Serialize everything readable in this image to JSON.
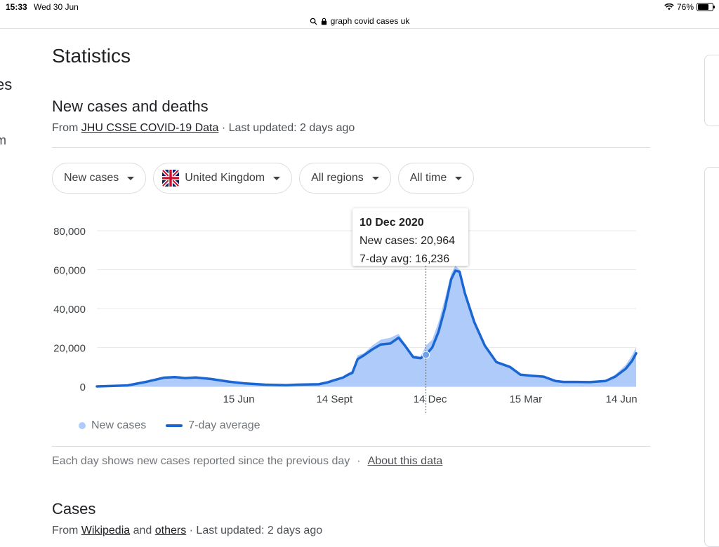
{
  "status": {
    "time": "15:33",
    "date": "Wed 30 Jun",
    "battery": "76%",
    "battery_level": 0.76
  },
  "url": {
    "text": "graph covid cases uk"
  },
  "left_edge": {
    "fragment1": "es",
    "fragment2": "m"
  },
  "page": {
    "title": "Statistics",
    "section_title": "New cases and deaths",
    "source_prefix": "From ",
    "source_link": "JHU CSSE COVID-19 Data",
    "source_suffix": " · Last updated: 2 days ago"
  },
  "filters": [
    {
      "label": "New cases"
    },
    {
      "label": "United Kingdom"
    },
    {
      "label": "All regions"
    },
    {
      "label": "All time"
    }
  ],
  "tooltip": {
    "date": "10 Dec 2020",
    "cases": "New cases: 20,964",
    "avg": "7-day avg: 16,236"
  },
  "legend": {
    "new_cases": "New cases",
    "avg": "7-day average"
  },
  "footnote": {
    "text": "Each day shows new cases reported since the previous day",
    "sep": "·",
    "link": "About this data"
  },
  "cases_section": {
    "title": "Cases",
    "prefix": "From ",
    "link1": "Wikipedia",
    "middle": " and ",
    "link2": "others",
    "suffix": " · Last updated: 2 days ago"
  },
  "colors": {
    "bar": "#aecbfa",
    "line": "#1a66d2",
    "grid": "#e8eaed"
  },
  "chart_data": {
    "type": "area",
    "x_range": [
      "2020-02-01",
      "2021-06-28"
    ],
    "ylim": [
      0,
      80000
    ],
    "y_ticks": [
      "0",
      "20,000",
      "40,000",
      "60,000",
      "80,000"
    ],
    "y_tick_values": [
      0,
      20000,
      40000,
      60000,
      80000
    ],
    "x_ticks": [
      {
        "label": "15 Jun",
        "date": "2020-06-15"
      },
      {
        "label": "14 Sept",
        "date": "2020-09-14"
      },
      {
        "label": "14 Dec",
        "date": "2020-12-14"
      },
      {
        "label": "15 Mar",
        "date": "2021-03-15"
      },
      {
        "label": "14 Jun",
        "date": "2021-06-14"
      }
    ],
    "highlight": {
      "date": "2020-12-10",
      "new_cases": 20964,
      "avg": 16236
    },
    "series": [
      {
        "name": "7-day average",
        "points": [
          [
            "2020-02-01",
            0
          ],
          [
            "2020-03-01",
            500
          ],
          [
            "2020-03-20",
            2500
          ],
          [
            "2020-04-05",
            4500
          ],
          [
            "2020-04-15",
            4800
          ],
          [
            "2020-04-25",
            4300
          ],
          [
            "2020-05-05",
            4600
          ],
          [
            "2020-05-20",
            3800
          ],
          [
            "2020-06-05",
            2500
          ],
          [
            "2020-06-20",
            1600
          ],
          [
            "2020-07-10",
            900
          ],
          [
            "2020-07-30",
            600
          ],
          [
            "2020-08-10",
            900
          ],
          [
            "2020-08-30",
            1100
          ],
          [
            "2020-09-07",
            2000
          ],
          [
            "2020-09-14",
            3200
          ],
          [
            "2020-09-22",
            4500
          ],
          [
            "2020-09-27",
            6000
          ],
          [
            "2020-10-01",
            7000
          ],
          [
            "2020-10-06",
            14000
          ],
          [
            "2020-10-12",
            16000
          ],
          [
            "2020-10-20",
            19000
          ],
          [
            "2020-10-28",
            21500
          ],
          [
            "2020-11-06",
            22000
          ],
          [
            "2020-11-14",
            25000
          ],
          [
            "2020-11-20",
            21000
          ],
          [
            "2020-11-28",
            15000
          ],
          [
            "2020-12-05",
            14500
          ],
          [
            "2020-12-10",
            16236
          ],
          [
            "2020-12-16",
            20000
          ],
          [
            "2020-12-22",
            28000
          ],
          [
            "2020-12-28",
            40000
          ],
          [
            "2021-01-03",
            55000
          ],
          [
            "2021-01-07",
            59500
          ],
          [
            "2021-01-11",
            59000
          ],
          [
            "2021-01-16",
            48000
          ],
          [
            "2021-01-25",
            33000
          ],
          [
            "2021-02-04",
            21000
          ],
          [
            "2021-02-15",
            12500
          ],
          [
            "2021-02-28",
            10000
          ],
          [
            "2021-03-10",
            6000
          ],
          [
            "2021-03-20",
            5500
          ],
          [
            "2021-04-01",
            5000
          ],
          [
            "2021-04-12",
            2800
          ],
          [
            "2021-04-20",
            2300
          ],
          [
            "2021-05-01",
            2300
          ],
          [
            "2021-05-15",
            2200
          ],
          [
            "2021-05-30",
            2800
          ],
          [
            "2021-06-08",
            5000
          ],
          [
            "2021-06-18",
            9000
          ],
          [
            "2021-06-24",
            13000
          ],
          [
            "2021-06-28",
            17000
          ]
        ]
      },
      {
        "name": "New cases",
        "points": [
          [
            "2020-02-01",
            0
          ],
          [
            "2020-03-01",
            600
          ],
          [
            "2020-03-20",
            3000
          ],
          [
            "2020-04-05",
            5000
          ],
          [
            "2020-04-15",
            5300
          ],
          [
            "2020-04-25",
            4500
          ],
          [
            "2020-05-05",
            5000
          ],
          [
            "2020-05-20",
            4000
          ],
          [
            "2020-06-05",
            2700
          ],
          [
            "2020-06-20",
            1700
          ],
          [
            "2020-07-10",
            1000
          ],
          [
            "2020-07-30",
            700
          ],
          [
            "2020-08-10",
            1000
          ],
          [
            "2020-08-30",
            1300
          ],
          [
            "2020-09-07",
            2500
          ],
          [
            "2020-09-14",
            3600
          ],
          [
            "2020-09-22",
            5000
          ],
          [
            "2020-09-27",
            7000
          ],
          [
            "2020-10-01",
            8000
          ],
          [
            "2020-10-06",
            16000
          ],
          [
            "2020-10-12",
            17000
          ],
          [
            "2020-10-20",
            21000
          ],
          [
            "2020-10-28",
            24000
          ],
          [
            "2020-11-06",
            25000
          ],
          [
            "2020-11-14",
            27000
          ],
          [
            "2020-11-20",
            22000
          ],
          [
            "2020-11-28",
            16000
          ],
          [
            "2020-12-05",
            15500
          ],
          [
            "2020-12-10",
            20964
          ],
          [
            "2020-12-16",
            24000
          ],
          [
            "2020-12-22",
            33000
          ],
          [
            "2020-12-28",
            45000
          ],
          [
            "2021-01-03",
            58000
          ],
          [
            "2021-01-07",
            62000
          ],
          [
            "2021-01-11",
            60000
          ],
          [
            "2021-01-16",
            50000
          ],
          [
            "2021-01-25",
            34000
          ],
          [
            "2021-02-04",
            22000
          ],
          [
            "2021-02-15",
            13000
          ],
          [
            "2021-02-28",
            10500
          ],
          [
            "2021-03-10",
            6500
          ],
          [
            "2021-03-20",
            6000
          ],
          [
            "2021-04-01",
            5300
          ],
          [
            "2021-04-12",
            3000
          ],
          [
            "2021-04-20",
            2500
          ],
          [
            "2021-05-01",
            2500
          ],
          [
            "2021-05-15",
            2400
          ],
          [
            "2021-05-30",
            3200
          ],
          [
            "2021-06-08",
            6000
          ],
          [
            "2021-06-18",
            11000
          ],
          [
            "2021-06-24",
            16000
          ],
          [
            "2021-06-28",
            20000
          ]
        ]
      }
    ]
  }
}
